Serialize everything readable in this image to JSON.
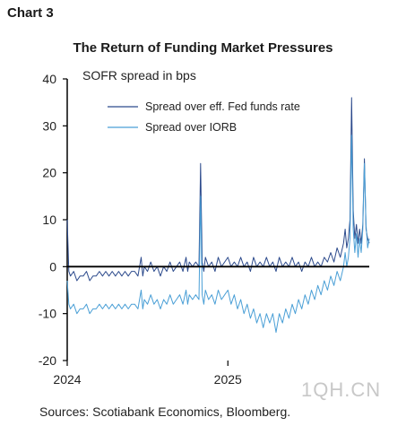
{
  "chart_label": "Chart 3",
  "colors": {
    "fed_funds": "#2c4a8c",
    "iorb": "#4a9fd6",
    "axis": "#000000"
  },
  "watermark": "1QH.CN",
  "chart_data": {
    "type": "line",
    "title": "The Return of Funding Market Pressures",
    "ylabel": "SOFR spread in bps",
    "source": "Sources: Scotiabank Economics, Bloomberg.",
    "ylim": [
      -20,
      40
    ],
    "yticks": [
      -20,
      -10,
      0,
      10,
      20,
      30,
      40
    ],
    "xlim": [
      0,
      1.88
    ],
    "xticks": [
      {
        "value": 0,
        "label": "2024"
      },
      {
        "value": 1,
        "label": "2025"
      }
    ],
    "grid": false,
    "legend": "top-right",
    "series": [
      {
        "name": "Spread over eff. Fed funds rate",
        "color_key": "fed_funds",
        "points": [
          [
            0.0,
            10
          ],
          [
            0.01,
            -1
          ],
          [
            0.02,
            -2
          ],
          [
            0.04,
            -1
          ],
          [
            0.06,
            -3
          ],
          [
            0.08,
            -2
          ],
          [
            0.1,
            -2
          ],
          [
            0.12,
            -1
          ],
          [
            0.14,
            -3
          ],
          [
            0.16,
            -2
          ],
          [
            0.18,
            -2
          ],
          [
            0.2,
            -1
          ],
          [
            0.22,
            -2
          ],
          [
            0.24,
            -1
          ],
          [
            0.26,
            -2
          ],
          [
            0.28,
            -1
          ],
          [
            0.3,
            -2
          ],
          [
            0.32,
            -1
          ],
          [
            0.34,
            -2
          ],
          [
            0.36,
            -1
          ],
          [
            0.38,
            -2
          ],
          [
            0.4,
            -1
          ],
          [
            0.42,
            -1
          ],
          [
            0.44,
            -2
          ],
          [
            0.46,
            2
          ],
          [
            0.47,
            -2
          ],
          [
            0.48,
            0
          ],
          [
            0.5,
            -1
          ],
          [
            0.52,
            1
          ],
          [
            0.54,
            -1
          ],
          [
            0.56,
            0
          ],
          [
            0.58,
            -2
          ],
          [
            0.6,
            0
          ],
          [
            0.62,
            -1
          ],
          [
            0.64,
            1
          ],
          [
            0.66,
            -1
          ],
          [
            0.68,
            0
          ],
          [
            0.7,
            1
          ],
          [
            0.72,
            -1
          ],
          [
            0.74,
            2
          ],
          [
            0.75,
            -1
          ],
          [
            0.76,
            1
          ],
          [
            0.78,
            0
          ],
          [
            0.8,
            1
          ],
          [
            0.82,
            0
          ],
          [
            0.83,
            22
          ],
          [
            0.84,
            1
          ],
          [
            0.85,
            -1
          ],
          [
            0.86,
            2
          ],
          [
            0.88,
            0
          ],
          [
            0.9,
            1
          ],
          [
            0.92,
            -1
          ],
          [
            0.94,
            2
          ],
          [
            0.96,
            0
          ],
          [
            0.98,
            1
          ],
          [
            1.0,
            2
          ],
          [
            1.02,
            0
          ],
          [
            1.04,
            1
          ],
          [
            1.06,
            0
          ],
          [
            1.08,
            2
          ],
          [
            1.1,
            0
          ],
          [
            1.12,
            1
          ],
          [
            1.14,
            -1
          ],
          [
            1.16,
            2
          ],
          [
            1.18,
            0
          ],
          [
            1.2,
            1
          ],
          [
            1.22,
            0
          ],
          [
            1.24,
            2
          ],
          [
            1.26,
            0
          ],
          [
            1.28,
            1
          ],
          [
            1.3,
            -1
          ],
          [
            1.32,
            2
          ],
          [
            1.34,
            0
          ],
          [
            1.36,
            1
          ],
          [
            1.38,
            0
          ],
          [
            1.4,
            2
          ],
          [
            1.42,
            0
          ],
          [
            1.44,
            1
          ],
          [
            1.46,
            -1
          ],
          [
            1.48,
            1
          ],
          [
            1.5,
            0
          ],
          [
            1.52,
            2
          ],
          [
            1.54,
            0
          ],
          [
            1.56,
            1
          ],
          [
            1.58,
            0
          ],
          [
            1.6,
            2
          ],
          [
            1.62,
            1
          ],
          [
            1.64,
            3
          ],
          [
            1.66,
            1
          ],
          [
            1.68,
            4
          ],
          [
            1.7,
            2
          ],
          [
            1.72,
            5
          ],
          [
            1.73,
            8
          ],
          [
            1.74,
            4
          ],
          [
            1.75,
            6
          ],
          [
            1.76,
            10
          ],
          [
            1.77,
            36
          ],
          [
            1.78,
            12
          ],
          [
            1.79,
            6
          ],
          [
            1.8,
            9
          ],
          [
            1.81,
            5
          ],
          [
            1.82,
            8
          ],
          [
            1.83,
            5
          ],
          [
            1.84,
            9
          ],
          [
            1.85,
            23
          ],
          [
            1.86,
            8
          ],
          [
            1.87,
            6
          ],
          [
            1.88,
            5
          ]
        ]
      },
      {
        "name": "Spread over IORB",
        "color_key": "iorb",
        "points": [
          [
            0.0,
            -3
          ],
          [
            0.01,
            -8
          ],
          [
            0.02,
            -9
          ],
          [
            0.04,
            -8
          ],
          [
            0.06,
            -10
          ],
          [
            0.08,
            -9
          ],
          [
            0.1,
            -9
          ],
          [
            0.12,
            -8
          ],
          [
            0.14,
            -10
          ],
          [
            0.16,
            -9
          ],
          [
            0.18,
            -9
          ],
          [
            0.2,
            -8
          ],
          [
            0.22,
            -9
          ],
          [
            0.24,
            -8
          ],
          [
            0.26,
            -9
          ],
          [
            0.28,
            -8
          ],
          [
            0.3,
            -9
          ],
          [
            0.32,
            -8
          ],
          [
            0.34,
            -9
          ],
          [
            0.36,
            -8
          ],
          [
            0.38,
            -9
          ],
          [
            0.4,
            -8
          ],
          [
            0.42,
            -8
          ],
          [
            0.44,
            -9
          ],
          [
            0.46,
            -5
          ],
          [
            0.47,
            -9
          ],
          [
            0.48,
            -7
          ],
          [
            0.5,
            -8
          ],
          [
            0.52,
            -6
          ],
          [
            0.54,
            -8
          ],
          [
            0.56,
            -7
          ],
          [
            0.58,
            -9
          ],
          [
            0.6,
            -7
          ],
          [
            0.62,
            -8
          ],
          [
            0.64,
            -6
          ],
          [
            0.66,
            -8
          ],
          [
            0.68,
            -7
          ],
          [
            0.7,
            -6
          ],
          [
            0.72,
            -8
          ],
          [
            0.74,
            -5
          ],
          [
            0.75,
            -8
          ],
          [
            0.76,
            -6
          ],
          [
            0.78,
            -7
          ],
          [
            0.8,
            -6
          ],
          [
            0.82,
            -7
          ],
          [
            0.83,
            15
          ],
          [
            0.84,
            -6
          ],
          [
            0.85,
            -8
          ],
          [
            0.86,
            -5
          ],
          [
            0.88,
            -7
          ],
          [
            0.9,
            -6
          ],
          [
            0.92,
            -8
          ],
          [
            0.94,
            -5
          ],
          [
            0.96,
            -7
          ],
          [
            0.98,
            -6
          ],
          [
            1.0,
            -5
          ],
          [
            1.02,
            -8
          ],
          [
            1.04,
            -6
          ],
          [
            1.06,
            -9
          ],
          [
            1.08,
            -7
          ],
          [
            1.1,
            -10
          ],
          [
            1.12,
            -8
          ],
          [
            1.14,
            -11
          ],
          [
            1.16,
            -9
          ],
          [
            1.18,
            -12
          ],
          [
            1.2,
            -10
          ],
          [
            1.22,
            -13
          ],
          [
            1.24,
            -10
          ],
          [
            1.26,
            -12
          ],
          [
            1.28,
            -10
          ],
          [
            1.3,
            -14
          ],
          [
            1.32,
            -10
          ],
          [
            1.34,
            -12
          ],
          [
            1.36,
            -9
          ],
          [
            1.38,
            -11
          ],
          [
            1.4,
            -8
          ],
          [
            1.42,
            -10
          ],
          [
            1.44,
            -7
          ],
          [
            1.46,
            -9
          ],
          [
            1.48,
            -6
          ],
          [
            1.5,
            -8
          ],
          [
            1.52,
            -5
          ],
          [
            1.54,
            -7
          ],
          [
            1.56,
            -4
          ],
          [
            1.58,
            -6
          ],
          [
            1.6,
            -3
          ],
          [
            1.62,
            -5
          ],
          [
            1.64,
            -2
          ],
          [
            1.66,
            -4
          ],
          [
            1.68,
            -1
          ],
          [
            1.7,
            -3
          ],
          [
            1.72,
            0
          ],
          [
            1.73,
            3
          ],
          [
            1.74,
            0
          ],
          [
            1.75,
            2
          ],
          [
            1.76,
            6
          ],
          [
            1.77,
            28
          ],
          [
            1.78,
            8
          ],
          [
            1.79,
            3
          ],
          [
            1.8,
            7
          ],
          [
            1.81,
            2
          ],
          [
            1.82,
            6
          ],
          [
            1.83,
            3
          ],
          [
            1.84,
            8
          ],
          [
            1.85,
            22
          ],
          [
            1.86,
            9
          ],
          [
            1.87,
            4
          ],
          [
            1.88,
            6
          ]
        ]
      }
    ]
  }
}
